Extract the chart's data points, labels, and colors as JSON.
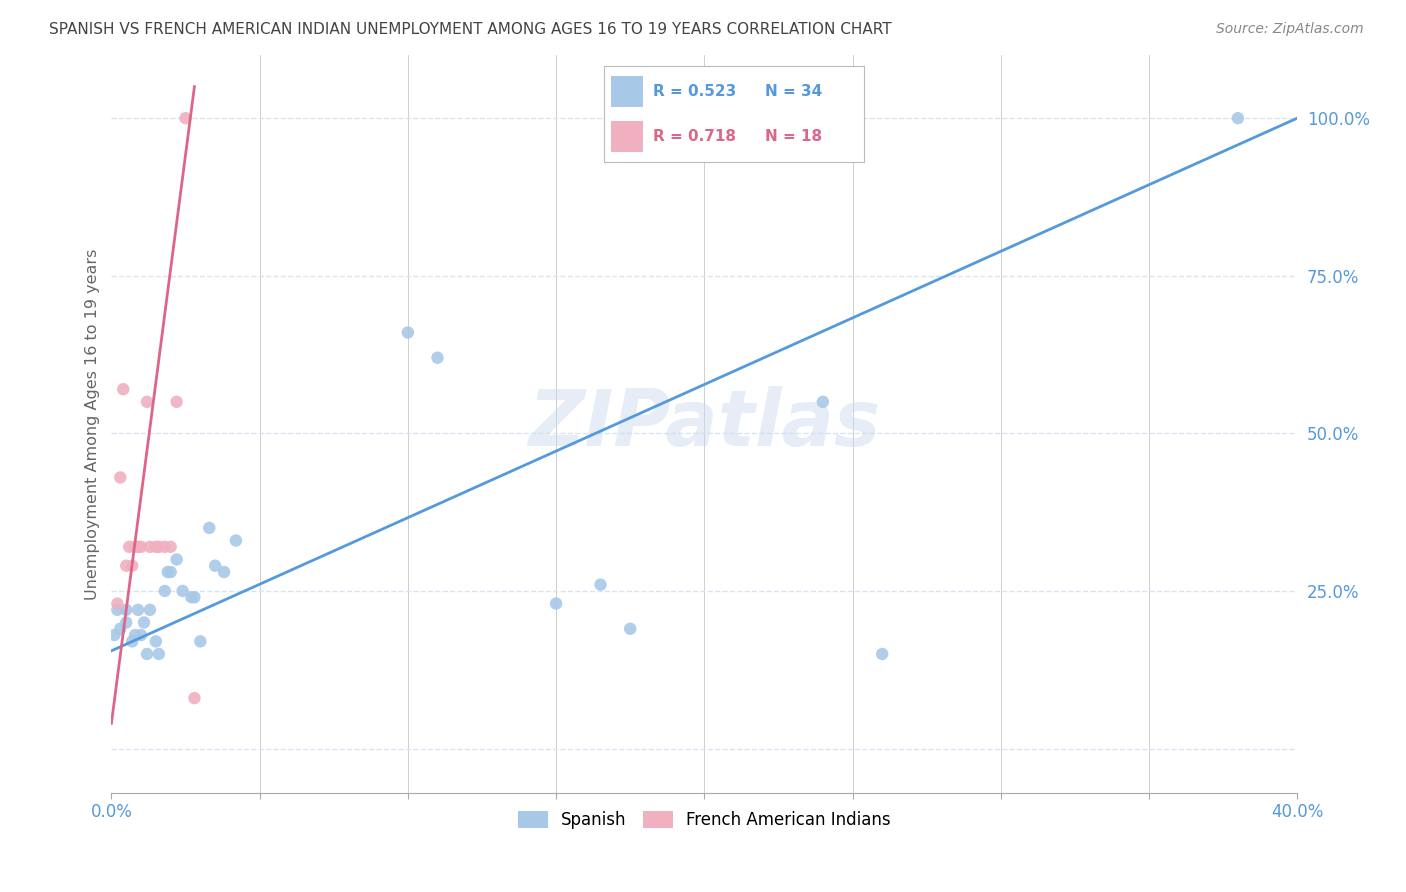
{
  "title": "SPANISH VS FRENCH AMERICAN INDIAN UNEMPLOYMENT AMONG AGES 16 TO 19 YEARS CORRELATION CHART",
  "source": "Source: ZipAtlas.com",
  "ylabel": "Unemployment Among Ages 16 to 19 years",
  "xlim": [
    0.0,
    0.4
  ],
  "ylim": [
    -0.07,
    1.1
  ],
  "yticks": [
    0.0,
    0.25,
    0.5,
    0.75,
    1.0
  ],
  "ytick_labels": [
    "",
    "25.0%",
    "50.0%",
    "75.0%",
    "100.0%"
  ],
  "xticks": [
    0.0,
    0.05,
    0.1,
    0.15,
    0.2,
    0.25,
    0.3,
    0.35,
    0.4
  ],
  "watermark": "ZIPatlas",
  "blue_color": "#a8c8e8",
  "blue_line_color": "#5599dd",
  "pink_color": "#f0b0c0",
  "pink_line_color": "#dd6688",
  "blue_R": 0.523,
  "blue_N": 34,
  "pink_R": 0.718,
  "pink_N": 18,
  "legend_label_blue": "Spanish",
  "legend_label_pink": "French American Indians",
  "spanish_x": [
    0.001,
    0.002,
    0.003,
    0.005,
    0.005,
    0.007,
    0.008,
    0.009,
    0.01,
    0.011,
    0.012,
    0.013,
    0.015,
    0.016,
    0.018,
    0.019,
    0.02,
    0.022,
    0.024,
    0.027,
    0.028,
    0.03,
    0.033,
    0.035,
    0.038,
    0.042,
    0.1,
    0.11,
    0.15,
    0.165,
    0.175,
    0.24,
    0.26,
    0.38
  ],
  "spanish_y": [
    0.18,
    0.22,
    0.19,
    0.2,
    0.22,
    0.17,
    0.18,
    0.22,
    0.18,
    0.2,
    0.15,
    0.22,
    0.17,
    0.15,
    0.25,
    0.28,
    0.28,
    0.3,
    0.25,
    0.24,
    0.24,
    0.17,
    0.35,
    0.29,
    0.28,
    0.33,
    0.66,
    0.62,
    0.23,
    0.26,
    0.19,
    0.55,
    0.15,
    1.0
  ],
  "french_x": [
    0.002,
    0.003,
    0.004,
    0.005,
    0.006,
    0.007,
    0.008,
    0.009,
    0.01,
    0.012,
    0.013,
    0.015,
    0.016,
    0.018,
    0.02,
    0.022,
    0.025,
    0.028
  ],
  "french_y": [
    0.23,
    0.43,
    0.57,
    0.29,
    0.32,
    0.29,
    0.32,
    0.32,
    0.32,
    0.55,
    0.32,
    0.32,
    0.32,
    0.32,
    0.32,
    0.55,
    1.0,
    0.08
  ],
  "blue_line_x0": 0.0,
  "blue_line_y0": 0.155,
  "blue_line_x1": 0.4,
  "blue_line_y1": 1.0,
  "pink_line_x0": 0.0,
  "pink_line_y0": 0.04,
  "pink_line_x1": 0.028,
  "pink_line_y1": 1.05,
  "grid_color": "#d8e4f0",
  "bg_color": "#ffffff",
  "title_color": "#555555",
  "tick_color": "#5599dd"
}
